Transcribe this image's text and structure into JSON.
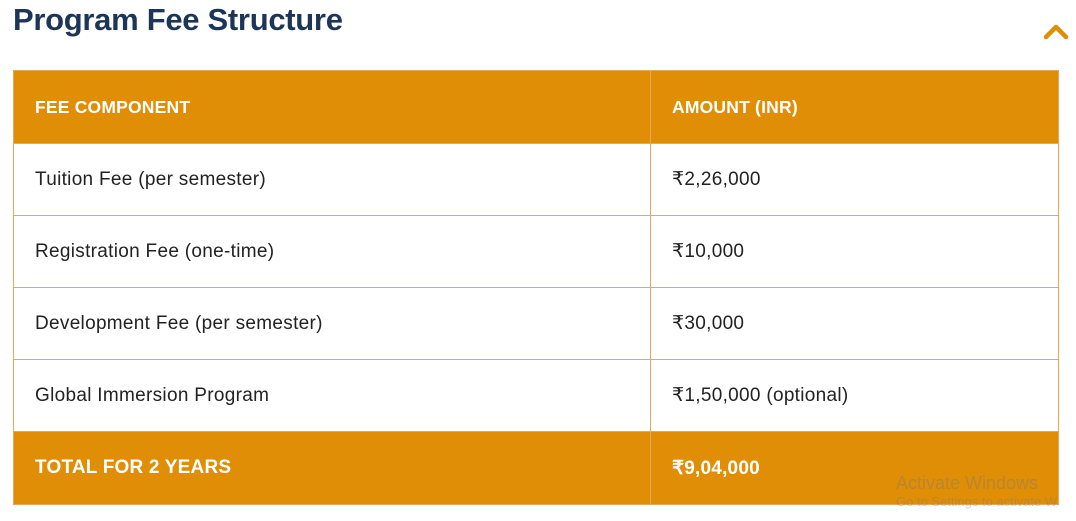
{
  "section": {
    "title": "Program Fee Structure",
    "toggle_icon": "chevron-up-icon",
    "accent_color": "#e08e06",
    "title_color": "#1d3657"
  },
  "fee_table": {
    "headers": [
      "FEE COMPONENT",
      "AMOUNT (INR)"
    ],
    "rows": [
      {
        "component": "Tuition Fee (per semester)",
        "amount": "₹2,26,000"
      },
      {
        "component": "Registration Fee (one-time)",
        "amount": "₹10,000"
      },
      {
        "component": "Development Fee (per semester)",
        "amount": "₹30,000"
      },
      {
        "component": "Global Immersion Program",
        "amount": "₹1,50,000 (optional)"
      }
    ],
    "total": {
      "label": "TOTAL FOR 2 YEARS",
      "amount": "₹9,04,000"
    }
  },
  "watermark": {
    "title": "Activate Windows",
    "subtitle": "Go to Settings to activate W"
  }
}
